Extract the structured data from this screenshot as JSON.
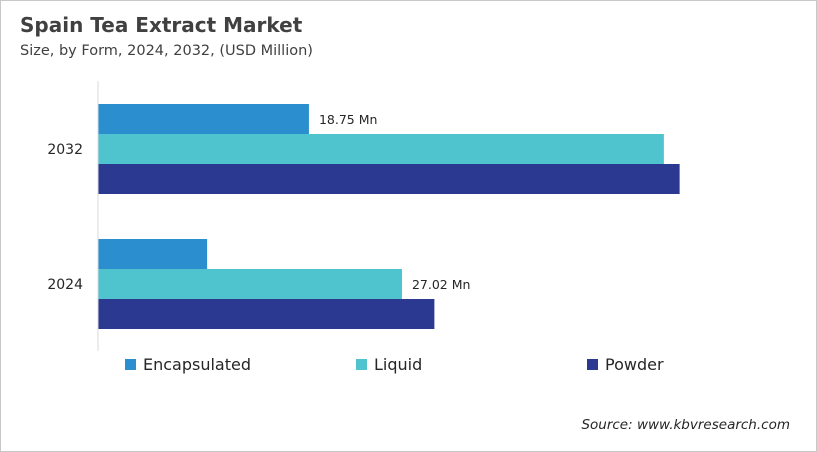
{
  "title": "Spain Tea Extract Market",
  "subtitle": "Size, by Form, 2024, 2032, (USD Million)",
  "source": "Source: www.kbvresearch.com",
  "chart_data": {
    "type": "bar",
    "orientation": "horizontal",
    "title": "Spain Tea Extract Market",
    "subtitle": "Size, by Form, 2024, 2032, (USD Million)",
    "categories": [
      "2032",
      "2024"
    ],
    "series": [
      {
        "name": "Encapsulated",
        "color": "#2b8fcf",
        "values": [
          18.75,
          9.7
        ]
      },
      {
        "name": "Liquid",
        "color": "#4fc4cf",
        "values": [
          50.3,
          27.02
        ]
      },
      {
        "name": "Powder",
        "color": "#2b3990",
        "values": [
          51.7,
          29.9
        ]
      }
    ],
    "data_labels": [
      {
        "category": "2032",
        "series": "Encapsulated",
        "text": "18.75 Mn"
      },
      {
        "category": "2024",
        "series": "Liquid",
        "text": "27.02 Mn"
      }
    ],
    "xlim": [
      0,
      60
    ],
    "grid": false,
    "legend": "bottom"
  }
}
